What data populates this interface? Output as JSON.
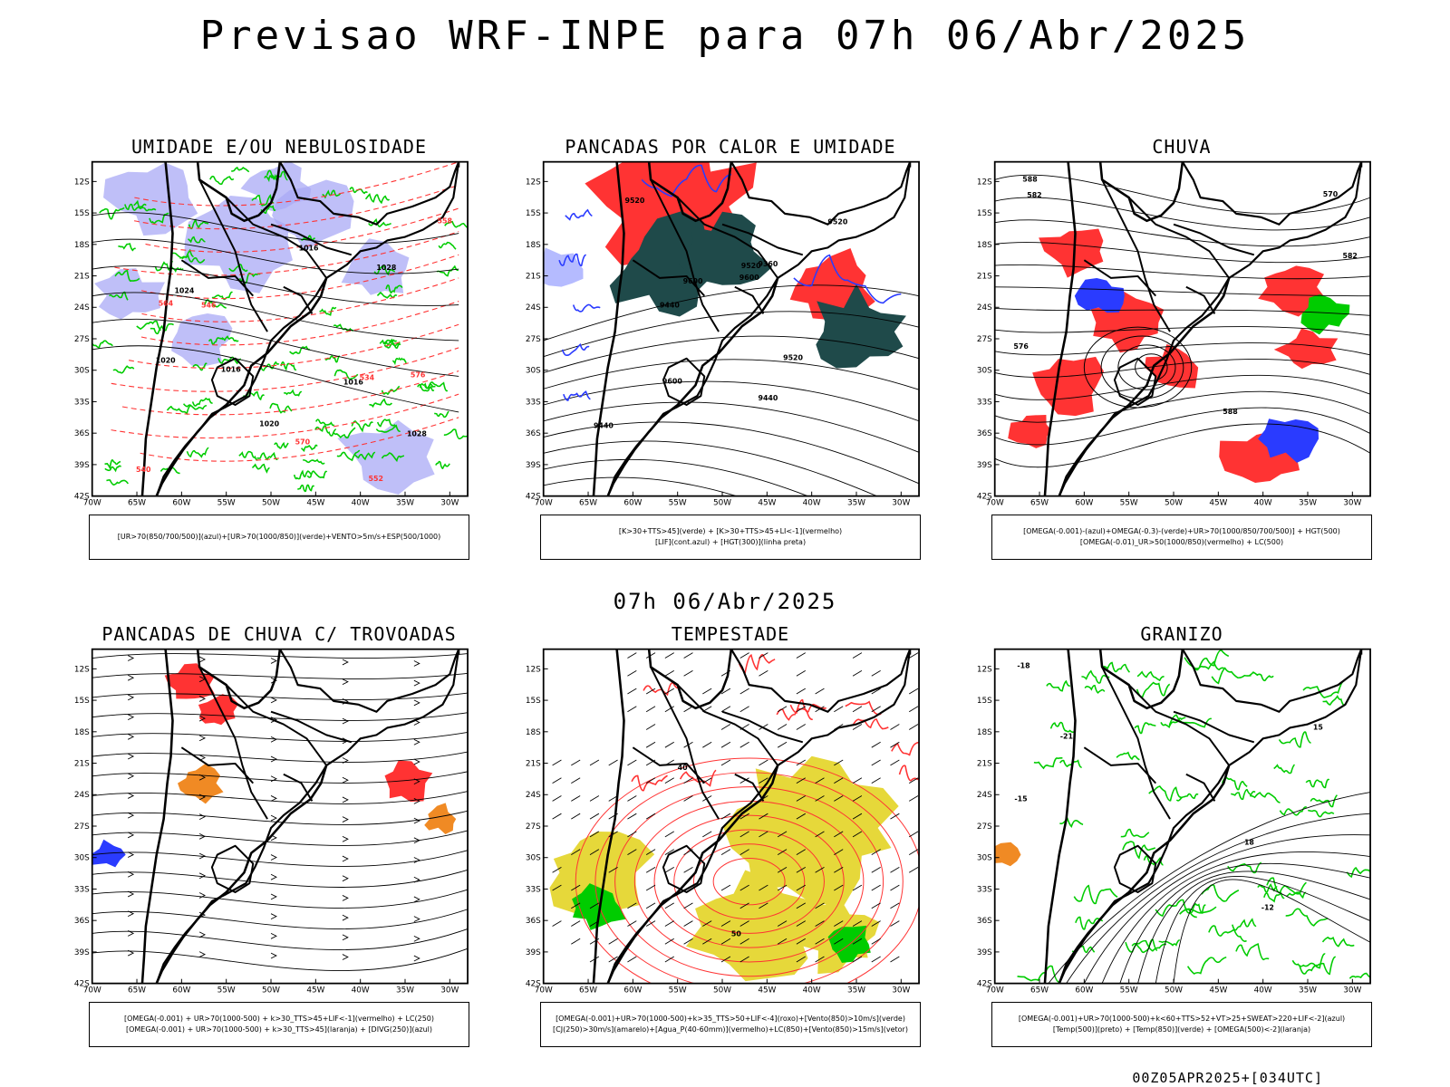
{
  "main_title": "Previsao WRF-INPE  para 07h 06/Abr/2025",
  "mid_title": "07h 06/Abr/2025",
  "footer": "00Z05APR2025+[034UTC]",
  "axes": {
    "lat_labels": [
      "12S",
      "15S",
      "18S",
      "21S",
      "24S",
      "27S",
      "30S",
      "33S",
      "36S",
      "39S",
      "42S"
    ],
    "lon_labels": [
      "70W",
      "65W",
      "60W",
      "55W",
      "50W",
      "45W",
      "40W",
      "35W",
      "30W"
    ]
  },
  "panels": [
    {
      "title": "UMIDADE E/OU NEBULOSIDADE",
      "legend": [
        "[UR>70(850/700/500)](azul)+[UR>70(1000/850)](verde)+VENTO>5m/s+ESP(500/1000)"
      ],
      "contour_labels": [
        "1016",
        "1016",
        "1016",
        "1020",
        "1024",
        "1020",
        "1028",
        "1028",
        "570",
        "576",
        "564",
        "558",
        "552",
        "546",
        "540",
        "534"
      ]
    },
    {
      "title": "PANCADAS POR CALOR E UMIDADE",
      "legend": [
        "[K>30+TTS>45](verde) + [K>30+TTS>45+LI<-1](vermelho)",
        "[LIF](cont.azul) + [HGT(300)](linha preta)"
      ],
      "contour_labels": [
        "9520",
        "9600",
        "9520",
        "9600",
        "9440",
        "9520",
        "9440",
        "9360",
        "9440",
        "9600",
        "9520"
      ]
    },
    {
      "title": "CHUVA",
      "legend": [
        "[OMEGA(-0.001)-(azul)+OMEGA(-0.3)-(verde)+UR>70(1000/850/700/500)] + HGT(500)",
        "[OMEGA(-0.01)_UR>50(1000/850)(vermelho) + LC(500)"
      ],
      "contour_labels": [
        "582",
        "588",
        "576",
        "570",
        "582",
        "588"
      ]
    },
    {
      "title": "PANCADAS DE CHUVA C/ TROVOADAS",
      "legend": [
        "[OMEGA(-0.001) + UR>70(1000-500) + k>30_TTS>45+LIF<-1](vermelho) + LC(250)",
        "[OMEGA(-0.001) + UR>70(1000-500) + k>30_TTS>45](laranja) + [DIVG(250)](azul)"
      ]
    },
    {
      "title": "TEMPESTADE",
      "legend": [
        "[OMEGA(-0.001)+UR>70(1000-500)+k>35_TTS>50+LIF<-4](roxo)+[Vento(850)>10m/s](verde)",
        "[CJ(250)>30m/s](amarelo)+[Agua_P(40-60mm)](vermelho)+LC(850)+[Vento(850)>15m/s](vetor)"
      ],
      "contour_labels": [
        "50",
        "40"
      ]
    },
    {
      "title": "GRANIZO",
      "legend": [
        "[OMEGA(-0.001)+UR>70(1000-500)+k<60+TTS>52+VT>25+SWEAT>220+LIF<-2](azul)",
        "[Temp(500)](preto) + [Temp(850)](verde) + [OMEGA(500)<-2](laranja)"
      ],
      "contour_labels": [
        "-12",
        "-18",
        "-15",
        "-21",
        "18",
        "15"
      ]
    }
  ],
  "colors": {
    "blue": "#2a3bff",
    "green": "#00cc00",
    "red": "#ff3333",
    "lavender": "#a9a9f5",
    "darkteal": "#1f4a4a",
    "orange": "#f08a24",
    "yellow": "#e6d83a",
    "black": "#000000"
  }
}
